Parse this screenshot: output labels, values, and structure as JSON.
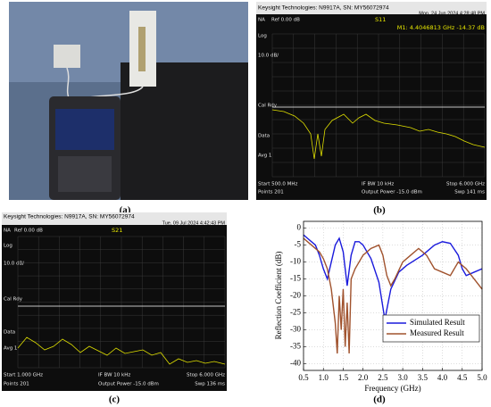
{
  "captions": {
    "a": "(a)",
    "b": "(b)",
    "c": "(c)",
    "d": "(d)"
  },
  "screen_b": {
    "header": "Keysight Technologies: N9917A, SN: MY56072974",
    "datetime": "Mon, 24 Jun 2024 4:28:48 PM",
    "mode": "NA",
    "ref": "Ref 0.00 dB",
    "param": "S11",
    "marker": "M1: 4.4046813 GHz -14.37 dB",
    "side": [
      "Log",
      "10.0 dB/",
      "Cal Rdy",
      "Data",
      "Avg 1"
    ],
    "start": "Start 500.0 MHz",
    "ifbw": "IF BW 10 kHz",
    "stop": "Stop 6.000 GHz",
    "points": "Points 201",
    "power": "Output Power -15.0 dBm",
    "sweep": "Swp 141 ms"
  },
  "screen_c": {
    "header": "Keysight Technologies: N9917A, SN: MY56072974",
    "datetime": "Tue, 09 Jul 2024 4:42:43 PM",
    "mode": "NA",
    "ref": "Ref 0.00 dB",
    "param": "S21",
    "side": [
      "Log",
      "10.0 dB/",
      "Cal Rdy",
      "Data",
      "Avg 1"
    ],
    "start": "Start 1.000 GHz",
    "ifbw": "IF BW 10 kHz",
    "stop": "Stop 6.000 GHz",
    "points": "Points 201",
    "power": "Output Power -15.0 dBm",
    "sweep": "Swp 136 ms"
  },
  "chart_data": {
    "type": "line",
    "xlabel": "Frequency (GHz)",
    "ylabel": "Reflection Coefficient (dB)",
    "xlim": [
      0.5,
      5.0
    ],
    "ylim": [
      -42,
      2
    ],
    "xticks": [
      0.5,
      {
        "value": 1,
        "label": "1.0"
      },
      1.5,
      {
        "value": 2,
        "label": "2.0"
      },
      2.5,
      {
        "value": 3,
        "label": "3.0"
      },
      3.5,
      {
        "value": 4,
        "label": "4.0"
      },
      4.5,
      {
        "value": 5,
        "label": "5.0"
      }
    ],
    "yticks": [
      0,
      -5,
      -10,
      -15,
      -20,
      -25,
      -30,
      -35,
      -40
    ],
    "grid": true,
    "legend": "lower right",
    "series": [
      {
        "name": "Simulated Result",
        "color": "#1a1adc",
        "x": [
          0.5,
          0.6,
          0.8,
          0.9,
          1.0,
          1.1,
          1.2,
          1.3,
          1.4,
          1.5,
          1.6,
          1.7,
          1.8,
          1.9,
          2.0,
          2.2,
          2.4,
          2.55,
          2.7,
          2.9,
          3.1,
          3.5,
          3.8,
          4.0,
          4.2,
          4.4,
          4.5,
          4.6,
          4.8,
          5.0
        ],
        "values": [
          -2,
          -3,
          -5,
          -8,
          -12,
          -15,
          -10,
          -5,
          -3,
          -7,
          -17,
          -8,
          -4,
          -4,
          -5,
          -9,
          -16,
          -27,
          -18,
          -13,
          -11,
          -8,
          -5,
          -4,
          -4.5,
          -8,
          -12,
          -14,
          -13,
          -12
        ]
      },
      {
        "name": "Measured Result",
        "color": "#a0522d",
        "x": [
          0.5,
          0.7,
          0.9,
          1.0,
          1.1,
          1.2,
          1.3,
          1.35,
          1.4,
          1.45,
          1.5,
          1.55,
          1.6,
          1.65,
          1.7,
          1.8,
          1.9,
          2.0,
          2.2,
          2.4,
          2.5,
          2.6,
          2.7,
          2.8,
          3.0,
          3.2,
          3.4,
          3.6,
          3.8,
          4.0,
          4.2,
          4.4,
          4.6,
          4.8,
          5.0
        ],
        "values": [
          -3,
          -5,
          -7,
          -9,
          -12,
          -18,
          -28,
          -37,
          -20,
          -30,
          -18,
          -35,
          -22,
          -37,
          -15,
          -12,
          -10,
          -8,
          -6,
          -5,
          -8,
          -14,
          -17,
          -15,
          -10,
          -8,
          -6,
          -8,
          -12,
          -13,
          -14,
          -10,
          -12,
          -15,
          -18
        ]
      }
    ]
  }
}
